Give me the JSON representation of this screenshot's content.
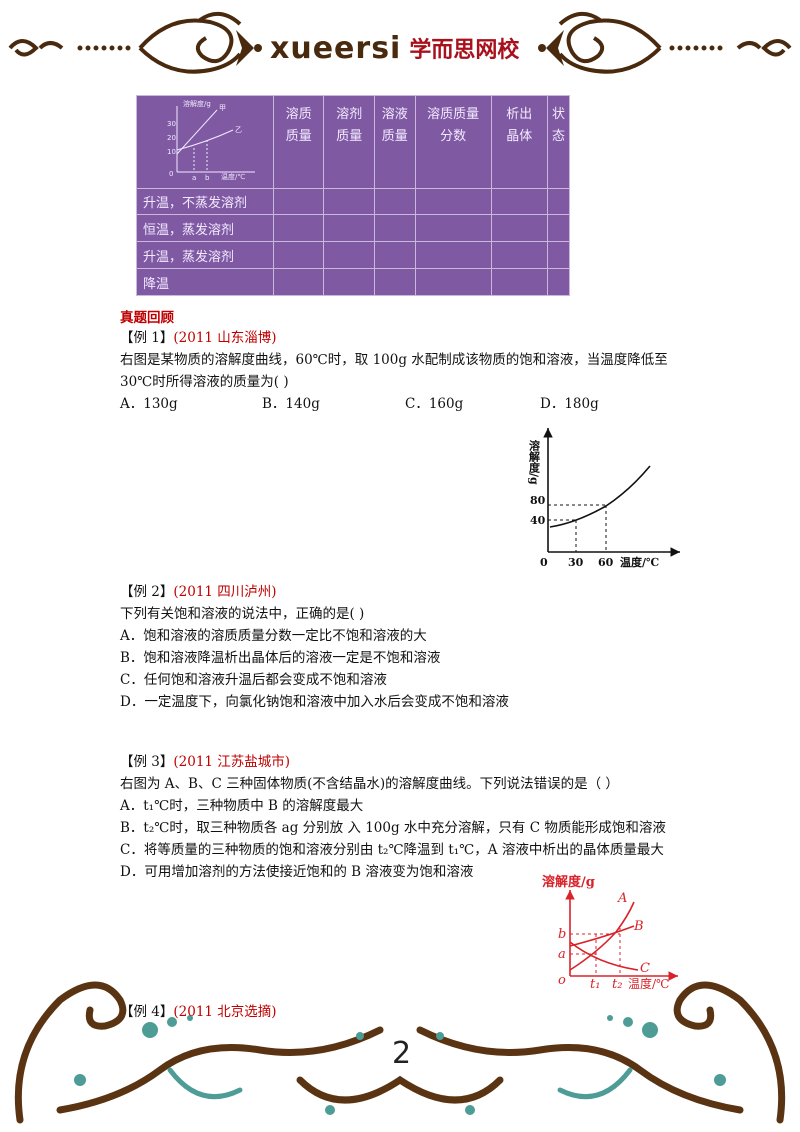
{
  "header": {
    "brand_en": "xueersi",
    "brand_zh": "学而思网校"
  },
  "table": {
    "mini_chart": {
      "ylabel": "溶解度/g",
      "xlabel": "温度/℃",
      "y_ticks": [
        "30",
        "20",
        "10",
        "0"
      ],
      "x_ticks": [
        "a",
        "b"
      ],
      "curve_labels": [
        "甲",
        "乙"
      ]
    },
    "headers": [
      "溶质\n质量",
      "溶剂\n质量",
      "溶液\n质量",
      "溶质质量\n分数",
      "析出\n晶体",
      "状态"
    ],
    "rows": [
      "升温，不蒸发溶剂",
      "恒温，蒸发溶剂",
      "升温，蒸发溶剂",
      "降温"
    ]
  },
  "section_title": "真题回顾",
  "ex1": {
    "label": "【例 1】",
    "source": "(2011 山东淄博)",
    "line1": "右图是某物质的溶解度曲线，60℃时，取 100g 水配制成该物质的饱和溶液，当温度降低至",
    "line2": "30℃时所得溶液的质量为(    )",
    "options": [
      "A．130g",
      "B．140g",
      "C．160g",
      "D．180g"
    ],
    "chart": {
      "ylabel": "溶解度/g",
      "xlabel": "温度/℃",
      "y_ticks": [
        "80",
        "40",
        "0"
      ],
      "x_ticks": [
        "30",
        "60"
      ]
    }
  },
  "ex2": {
    "label": "【例 2】",
    "source": "(2011 四川泸州)",
    "stem": "下列有关饱和溶液的说法中，正确的是(    )",
    "options": [
      "A．饱和溶液的溶质质量分数一定比不饱和溶液的大",
      "B．饱和溶液降温析出晶体后的溶液一定是不饱和溶液",
      "C．任何饱和溶液升温后都会变成不饱和溶液",
      "D．一定温度下，向氯化钠饱和溶液中加入水后会变成不饱和溶液"
    ]
  },
  "ex3": {
    "label": "【例 3】",
    "source": "(2011 江苏盐城市)",
    "stem": "右图为 A、B、C 三种固体物质(不含结晶水)的溶解度曲线。下列说法错误的是（    ）",
    "options": [
      "A．t₁℃时，三种物质中 B 的溶解度最大",
      "B．t₂℃时，取三种物质各 ag 分别放 入 100g 水中充分溶解，只有 C 物质能形成饱和溶液",
      "C．将等质量的三种物质的饱和溶液分别由 t₂℃降温到 t₁℃，A 溶液中析出的晶体质量最大",
      "D．可用增加溶剂的方法使接近饱和的 B 溶液变为饱和溶液"
    ],
    "chart": {
      "ylabel": "溶解度/g",
      "xlabel": "温度/℃",
      "y_ticks": [
        "b",
        "a",
        "o"
      ],
      "x_ticks": [
        "t₁",
        "t₂"
      ],
      "curve_labels": [
        "A",
        "B",
        "C"
      ]
    }
  },
  "ex4": {
    "label": "【例 4】",
    "source": "(2011 北京选摘)"
  },
  "page_number": "2"
}
